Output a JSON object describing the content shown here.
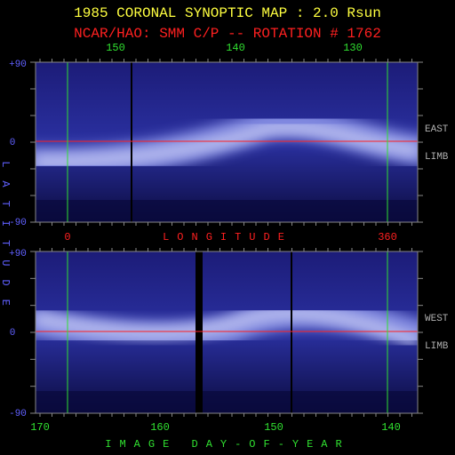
{
  "header": {
    "title": "1985 CORONAL SYNOPTIC MAP : 2.0 Rsun",
    "subtitle": "NCAR/HAO: SMM C/P -- ROTATION # 1762"
  },
  "top_panel": {
    "x_ticks": [
      "150",
      "140",
      "130"
    ],
    "y_ticks": [
      "+90",
      "0",
      "-90"
    ],
    "side_labels": [
      "EAST",
      "LIMB"
    ]
  },
  "middle": {
    "left_tick": "0",
    "axis_label": "LONGITUDE",
    "right_tick": "360"
  },
  "bottom_panel": {
    "y_ticks": [
      "+90",
      "0",
      "-90"
    ],
    "x_ticks": [
      "170",
      "160",
      "150",
      "140"
    ],
    "side_labels": [
      "WEST",
      "LIMB"
    ],
    "axis_label": "IMAGE DAY-OF-YEAR"
  },
  "y_axis_label": "LATITUDE"
}
